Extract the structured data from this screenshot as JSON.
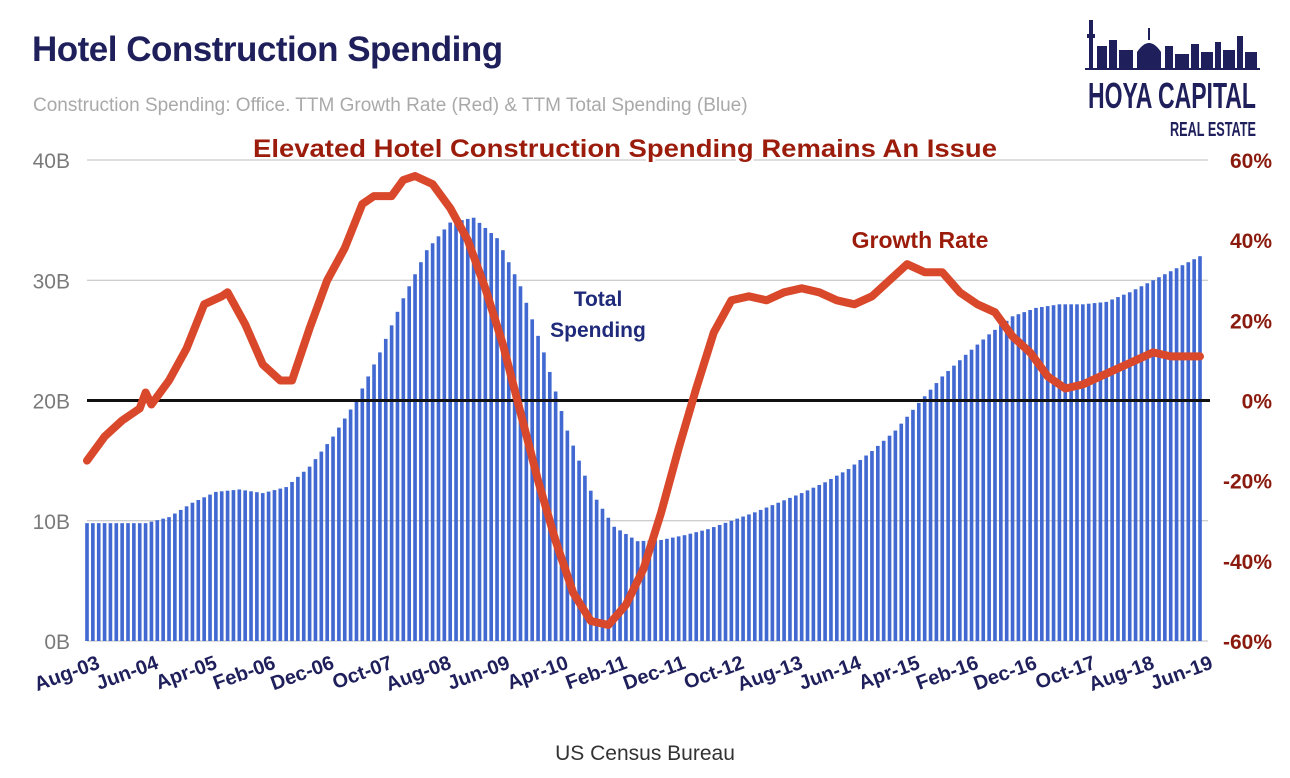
{
  "header": {
    "title": "Hotel Construction Spending",
    "subtitle": "Construction Spending: Office. TTM Growth Rate (Red) & TTM Total Spending (Blue)"
  },
  "logo": {
    "line1": "HOYA CAPITAL",
    "line2": "REAL ESTATE",
    "icon": "city-skyline-icon"
  },
  "footer": {
    "source": "US Census Bureau"
  },
  "colors": {
    "bars": "#4169d1",
    "line": "#d9482b",
    "title": "#1f1f5c",
    "annotation_red": "#9c1c0c",
    "annotation_blue": "#1f2a7a",
    "zero_line": "#111111"
  },
  "chart_data": {
    "type": "bar+line",
    "title": "Hotel Construction Spending",
    "x_tick_labels": [
      "Aug-03",
      "Jun-04",
      "Apr-05",
      "Feb-06",
      "Dec-06",
      "Oct-07",
      "Aug-08",
      "Jun-09",
      "Apr-10",
      "Feb-11",
      "Dec-11",
      "Oct-12",
      "Aug-13",
      "Jun-14",
      "Apr-15",
      "Feb-16",
      "Dec-16",
      "Oct-17",
      "Aug-18",
      "Jun-19"
    ],
    "x_start": "2003-08",
    "x_end": "2019-06",
    "left_axis": {
      "ticks": [
        "0B",
        "10B",
        "20B",
        "30B",
        "40B"
      ],
      "ylim": [
        0,
        40
      ]
    },
    "right_axis": {
      "ticks": [
        "-60%",
        "-40%",
        "-20%",
        "0%",
        "20%",
        "40%",
        "60%"
      ],
      "ylim": [
        -60,
        60
      ]
    },
    "grid": true,
    "series": [
      {
        "type": "bar",
        "axis": "left",
        "unit": "B",
        "points": [
          [
            "2003-08",
            9.8
          ],
          [
            "2004-06",
            9.8
          ],
          [
            "2004-10",
            10.3
          ],
          [
            "2005-02",
            11.5
          ],
          [
            "2005-06",
            12.4
          ],
          [
            "2005-10",
            12.6
          ],
          [
            "2006-02",
            12.3
          ],
          [
            "2006-06",
            12.8
          ],
          [
            "2006-10",
            14.5
          ],
          [
            "2007-02",
            17.0
          ],
          [
            "2007-06",
            20.0
          ],
          [
            "2007-10",
            24.0
          ],
          [
            "2008-02",
            28.5
          ],
          [
            "2008-06",
            32.5
          ],
          [
            "2008-10",
            34.8
          ],
          [
            "2009-02",
            35.2
          ],
          [
            "2009-06",
            33.5
          ],
          [
            "2009-10",
            29.5
          ],
          [
            "2010-02",
            24.0
          ],
          [
            "2010-06",
            17.5
          ],
          [
            "2010-10",
            12.5
          ],
          [
            "2011-02",
            9.5
          ],
          [
            "2011-06",
            8.3
          ],
          [
            "2011-10",
            8.4
          ],
          [
            "2012-02",
            8.8
          ],
          [
            "2012-06",
            9.3
          ],
          [
            "2012-10",
            10.0
          ],
          [
            "2013-02",
            10.7
          ],
          [
            "2013-06",
            11.5
          ],
          [
            "2013-10",
            12.3
          ],
          [
            "2014-02",
            13.2
          ],
          [
            "2014-06",
            14.3
          ],
          [
            "2014-10",
            15.8
          ],
          [
            "2015-02",
            17.5
          ],
          [
            "2015-06",
            19.8
          ],
          [
            "2015-10",
            22.0
          ],
          [
            "2016-02",
            23.8
          ],
          [
            "2016-06",
            25.5
          ],
          [
            "2016-10",
            27.0
          ],
          [
            "2017-02",
            27.7
          ],
          [
            "2017-06",
            28.0
          ],
          [
            "2017-10",
            28.0
          ],
          [
            "2018-02",
            28.2
          ],
          [
            "2018-06",
            29.0
          ],
          [
            "2018-10",
            30.0
          ],
          [
            "2019-02",
            31.0
          ],
          [
            "2019-06",
            32.0
          ]
        ]
      },
      {
        "type": "line",
        "axis": "right",
        "unit": "%",
        "points": [
          [
            "2003-08",
            -15
          ],
          [
            "2003-11",
            -9
          ],
          [
            "2004-02",
            -5
          ],
          [
            "2004-05",
            -2
          ],
          [
            "2004-06",
            2
          ],
          [
            "2004-07",
            -1
          ],
          [
            "2004-10",
            5
          ],
          [
            "2005-01",
            13
          ],
          [
            "2005-04",
            24
          ],
          [
            "2005-07",
            26
          ],
          [
            "2005-08",
            27
          ],
          [
            "2005-11",
            19
          ],
          [
            "2006-02",
            9
          ],
          [
            "2006-05",
            5
          ],
          [
            "2006-07",
            5
          ],
          [
            "2006-10",
            18
          ],
          [
            "2007-01",
            30
          ],
          [
            "2007-04",
            38
          ],
          [
            "2007-07",
            49
          ],
          [
            "2007-09",
            51
          ],
          [
            "2007-12",
            51
          ],
          [
            "2008-02",
            55
          ],
          [
            "2008-04",
            56
          ],
          [
            "2008-07",
            54
          ],
          [
            "2008-10",
            48
          ],
          [
            "2009-01",
            40
          ],
          [
            "2009-04",
            28
          ],
          [
            "2009-07",
            14
          ],
          [
            "2009-10",
            -3
          ],
          [
            "2010-01",
            -20
          ],
          [
            "2010-04",
            -35
          ],
          [
            "2010-07",
            -48
          ],
          [
            "2010-10",
            -55
          ],
          [
            "2011-01",
            -56
          ],
          [
            "2011-04",
            -51
          ],
          [
            "2011-07",
            -42
          ],
          [
            "2011-10",
            -28
          ],
          [
            "2012-01",
            -12
          ],
          [
            "2012-04",
            3
          ],
          [
            "2012-07",
            17
          ],
          [
            "2012-10",
            25
          ],
          [
            "2013-01",
            26
          ],
          [
            "2013-04",
            25
          ],
          [
            "2013-07",
            27
          ],
          [
            "2013-10",
            28
          ],
          [
            "2014-01",
            27
          ],
          [
            "2014-04",
            25
          ],
          [
            "2014-07",
            24
          ],
          [
            "2014-10",
            26
          ],
          [
            "2015-01",
            30
          ],
          [
            "2015-04",
            34
          ],
          [
            "2015-07",
            32
          ],
          [
            "2015-10",
            32
          ],
          [
            "2016-01",
            27
          ],
          [
            "2016-04",
            24
          ],
          [
            "2016-07",
            22
          ],
          [
            "2016-10",
            16
          ],
          [
            "2017-01",
            12
          ],
          [
            "2017-04",
            6
          ],
          [
            "2017-07",
            3
          ],
          [
            "2017-10",
            4
          ],
          [
            "2018-01",
            6
          ],
          [
            "2018-04",
            8
          ],
          [
            "2018-07",
            10
          ],
          [
            "2018-10",
            12
          ],
          [
            "2019-01",
            11
          ],
          [
            "2019-06",
            11
          ]
        ]
      }
    ],
    "annotations": [
      {
        "text": "Elevated Hotel Construction Spending Remains An Issue"
      },
      {
        "text": "Growth Rate"
      },
      {
        "text": "Total",
        "text2": "Spending"
      }
    ]
  }
}
